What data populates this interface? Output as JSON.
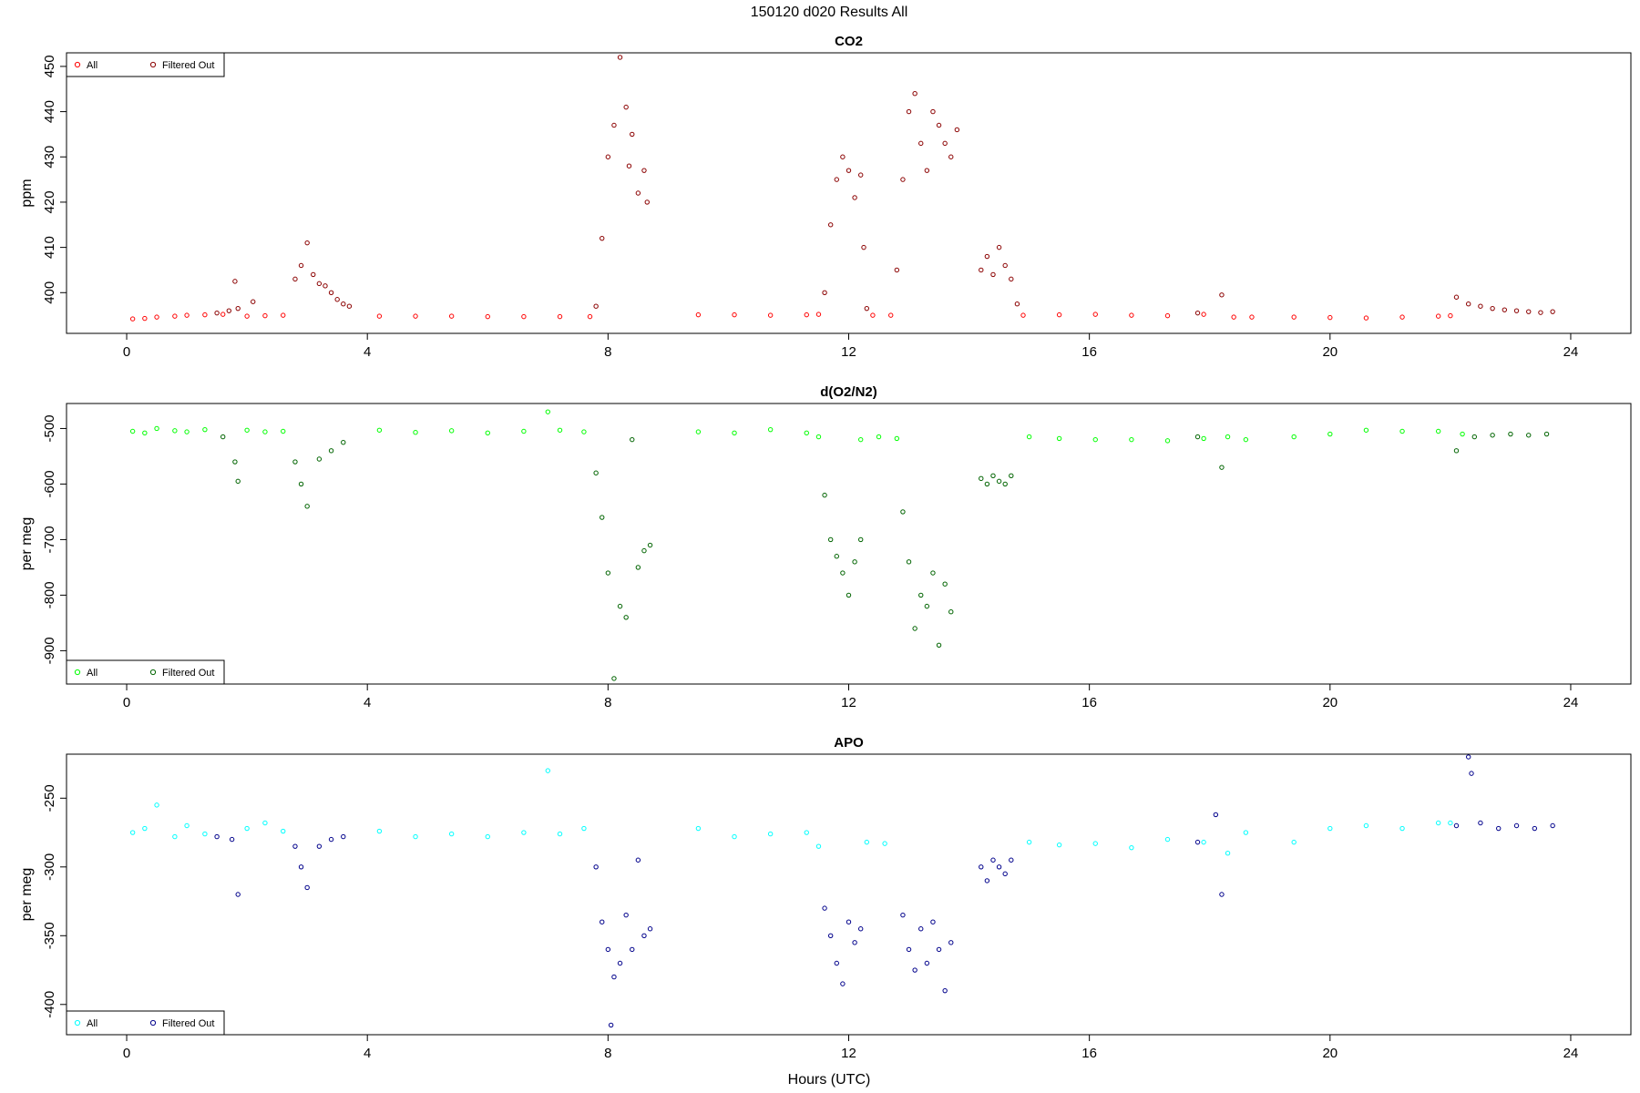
{
  "page": {
    "title": "150120   d020   Results All",
    "xlabel": "Hours (UTC)"
  },
  "chart_data": [
    {
      "type": "scatter",
      "title": "CO2",
      "ylabel": "ppm",
      "xlim": [
        -1.0,
        25.0
      ],
      "ylim": [
        391,
        453
      ],
      "xticks": [
        0,
        4,
        8,
        12,
        16,
        20,
        24
      ],
      "yticks": [
        400,
        410,
        420,
        430,
        440,
        450
      ],
      "legend_position": "top-left",
      "legend": [
        "All",
        "Filtered Out"
      ],
      "colors": {
        "all": "#ff0000",
        "filtered": "#8b0000"
      },
      "series": [
        {
          "name": "All",
          "x": [
            0.1,
            0.3,
            0.5,
            0.8,
            1.0,
            1.3,
            1.6,
            2.0,
            2.3,
            2.6,
            4.2,
            4.8,
            5.4,
            6.0,
            6.6,
            7.2,
            7.7,
            9.5,
            10.1,
            10.7,
            11.3,
            11.5,
            12.4,
            12.7,
            14.9,
            15.5,
            16.1,
            16.7,
            17.3,
            17.9,
            18.4,
            18.7,
            19.4,
            20.0,
            20.6,
            21.2,
            21.8,
            22.0
          ],
          "y": [
            394.2,
            394.3,
            394.6,
            394.8,
            395.0,
            395.1,
            395.2,
            394.8,
            394.9,
            395.0,
            394.8,
            394.8,
            394.8,
            394.7,
            394.7,
            394.7,
            394.7,
            395.1,
            395.1,
            395.0,
            395.1,
            395.2,
            395.0,
            395.0,
            395.0,
            395.1,
            395.2,
            395.0,
            394.9,
            395.2,
            394.6,
            394.6,
            394.6,
            394.5,
            394.4,
            394.6,
            394.8,
            394.9
          ]
        },
        {
          "name": "Filtered Out",
          "x": [
            1.5,
            1.7,
            1.8,
            1.85,
            2.1,
            2.8,
            2.9,
            3.0,
            3.1,
            3.2,
            3.3,
            3.4,
            3.5,
            3.6,
            3.7,
            7.8,
            7.9,
            8.0,
            8.1,
            8.2,
            8.3,
            8.35,
            8.4,
            8.5,
            8.6,
            8.65,
            11.6,
            11.7,
            11.8,
            11.9,
            12.0,
            12.1,
            12.2,
            12.25,
            12.3,
            12.8,
            12.9,
            13.0,
            13.1,
            13.2,
            13.3,
            13.4,
            13.5,
            13.6,
            13.7,
            13.8,
            14.2,
            14.3,
            14.4,
            14.5,
            14.6,
            14.7,
            14.8,
            17.8,
            18.2,
            22.1,
            22.3,
            22.5,
            22.7,
            22.9,
            23.1,
            23.3,
            23.5,
            23.7
          ],
          "y": [
            395.5,
            396.0,
            402.5,
            396.5,
            398.0,
            403.0,
            406.0,
            411.0,
            404.0,
            402.0,
            401.5,
            400.0,
            398.5,
            397.5,
            397.0,
            397.0,
            412.0,
            430.0,
            437.0,
            452.0,
            441.0,
            428.0,
            435.0,
            422.0,
            427.0,
            420.0,
            400.0,
            415.0,
            425.0,
            430.0,
            427.0,
            421.0,
            426.0,
            410.0,
            396.5,
            405.0,
            425.0,
            440.0,
            444.0,
            433.0,
            427.0,
            440.0,
            437.0,
            433.0,
            430.0,
            436.0,
            405.0,
            408.0,
            404.0,
            410.0,
            406.0,
            403.0,
            397.5,
            395.5,
            399.5,
            399.0,
            397.5,
            397.0,
            396.5,
            396.2,
            396.0,
            395.8,
            395.6,
            395.8
          ]
        }
      ]
    },
    {
      "type": "scatter",
      "title": "d(O2/N2)",
      "ylabel": "per meg",
      "xlim": [
        -1.0,
        25.0
      ],
      "ylim": [
        -960,
        -455
      ],
      "xticks": [
        0,
        4,
        8,
        12,
        16,
        20,
        24
      ],
      "yticks": [
        -500,
        -600,
        -700,
        -800,
        -900
      ],
      "legend_position": "bottom-left",
      "legend": [
        "All",
        "Filtered Out"
      ],
      "colors": {
        "all": "#00ff00",
        "filtered": "#006400"
      },
      "series": [
        {
          "name": "All",
          "x": [
            0.1,
            0.3,
            0.5,
            0.8,
            1.0,
            1.3,
            2.0,
            2.3,
            2.6,
            4.2,
            4.8,
            5.4,
            6.0,
            6.6,
            7.0,
            7.2,
            7.6,
            9.5,
            10.1,
            10.7,
            11.3,
            11.5,
            12.2,
            12.5,
            12.8,
            15.0,
            15.5,
            16.1,
            16.7,
            17.3,
            17.9,
            18.3,
            18.6,
            19.4,
            20.0,
            20.6,
            21.2,
            21.8,
            22.2
          ],
          "y": [
            -505,
            -508,
            -500,
            -504,
            -506,
            -502,
            -503,
            -506,
            -505,
            -503,
            -507,
            -504,
            -508,
            -505,
            -470,
            -503,
            -506,
            -506,
            -508,
            -502,
            -508,
            -515,
            -520,
            -515,
            -518,
            -515,
            -518,
            -520,
            -520,
            -522,
            -518,
            -515,
            -520,
            -515,
            -510,
            -503,
            -505,
            -505,
            -510
          ]
        },
        {
          "name": "Filtered Out",
          "x": [
            1.6,
            1.8,
            1.85,
            2.8,
            2.9,
            3.0,
            3.2,
            3.4,
            3.6,
            7.8,
            7.9,
            8.0,
            8.1,
            8.2,
            8.3,
            8.4,
            8.5,
            8.6,
            8.7,
            11.6,
            11.7,
            11.8,
            11.9,
            12.0,
            12.1,
            12.2,
            12.9,
            13.0,
            13.1,
            13.2,
            13.3,
            13.4,
            13.5,
            13.6,
            13.7,
            14.2,
            14.3,
            14.4,
            14.5,
            14.6,
            14.7,
            17.8,
            18.2,
            22.1,
            22.4,
            22.7,
            23.0,
            23.3,
            23.6
          ],
          "y": [
            -515,
            -560,
            -595,
            -560,
            -600,
            -640,
            -555,
            -540,
            -525,
            -580,
            -660,
            -760,
            -950,
            -820,
            -840,
            -520,
            -750,
            -720,
            -710,
            -620,
            -700,
            -730,
            -760,
            -800,
            -740,
            -700,
            -650,
            -740,
            -860,
            -800,
            -820,
            -760,
            -890,
            -780,
            -830,
            -590,
            -600,
            -585,
            -595,
            -600,
            -585,
            -515,
            -570,
            -540,
            -515,
            -512,
            -510,
            -512,
            -510
          ]
        }
      ]
    },
    {
      "type": "scatter",
      "title": "APO",
      "ylabel": "per meg",
      "xlim": [
        -1.0,
        25.0
      ],
      "ylim": [
        -422,
        -218
      ],
      "xticks": [
        0,
        4,
        8,
        12,
        16,
        20,
        24
      ],
      "yticks": [
        -250,
        -300,
        -350,
        -400
      ],
      "legend_position": "bottom-left",
      "legend": [
        "All",
        "Filtered Out"
      ],
      "colors": {
        "all": "#00ffff",
        "filtered": "#00008b"
      },
      "series": [
        {
          "name": "All",
          "x": [
            0.1,
            0.3,
            0.5,
            0.8,
            1.0,
            1.3,
            2.0,
            2.3,
            2.6,
            4.2,
            4.8,
            5.4,
            6.0,
            6.6,
            7.0,
            7.2,
            7.6,
            9.5,
            10.1,
            10.7,
            11.3,
            11.5,
            12.3,
            12.6,
            15.0,
            15.5,
            16.1,
            16.7,
            17.3,
            17.9,
            18.3,
            18.6,
            19.4,
            20.0,
            20.6,
            21.2,
            21.8,
            22.0
          ],
          "y": [
            -275,
            -272,
            -255,
            -278,
            -270,
            -276,
            -272,
            -268,
            -274,
            -274,
            -278,
            -276,
            -278,
            -275,
            -230,
            -276,
            -272,
            -272,
            -278,
            -276,
            -275,
            -285,
            -282,
            -283,
            -282,
            -284,
            -283,
            -286,
            -280,
            -282,
            -290,
            -275,
            -282,
            -272,
            -270,
            -272,
            -268,
            -268
          ]
        },
        {
          "name": "Filtered Out",
          "x": [
            1.5,
            1.75,
            1.85,
            2.8,
            2.9,
            3.0,
            3.2,
            3.4,
            3.6,
            7.8,
            7.9,
            8.0,
            8.05,
            8.1,
            8.2,
            8.3,
            8.4,
            8.5,
            8.6,
            8.7,
            11.6,
            11.7,
            11.8,
            11.9,
            12.0,
            12.1,
            12.2,
            12.9,
            13.0,
            13.1,
            13.2,
            13.3,
            13.4,
            13.5,
            13.6,
            13.7,
            14.2,
            14.3,
            14.4,
            14.5,
            14.6,
            14.7,
            17.8,
            18.1,
            18.2,
            22.1,
            22.3,
            22.35,
            22.5,
            22.8,
            23.1,
            23.4,
            23.7
          ],
          "y": [
            -278,
            -280,
            -320,
            -285,
            -300,
            -315,
            -285,
            -280,
            -278,
            -300,
            -340,
            -360,
            -415,
            -380,
            -370,
            -335,
            -360,
            -295,
            -350,
            -345,
            -330,
            -350,
            -370,
            -385,
            -340,
            -355,
            -345,
            -335,
            -360,
            -375,
            -345,
            -370,
            -340,
            -360,
            -390,
            -355,
            -300,
            -310,
            -295,
            -300,
            -305,
            -295,
            -282,
            -262,
            -320,
            -270,
            -220,
            -232,
            -268,
            -272,
            -270,
            -272,
            -270
          ]
        }
      ]
    }
  ]
}
